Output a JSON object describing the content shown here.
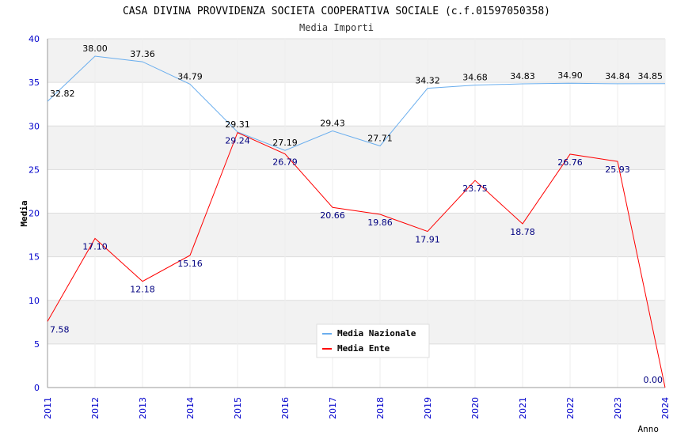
{
  "chart_data": {
    "type": "line",
    "title": "CASA DIVINA PROVVIDENZA SOCIETA COOPERATIVA SOCIALE (c.f.01597050358)",
    "subtitle": "Media Importi",
    "xlabel": "Anno",
    "ylabel": "Media",
    "ylim": [
      0,
      40
    ],
    "yticks": [
      "0",
      "5",
      "10",
      "15",
      "20",
      "25",
      "30",
      "35",
      "40"
    ],
    "x": [
      "2011",
      "2012",
      "2013",
      "2014",
      "2015",
      "2016",
      "2017",
      "2018",
      "2019",
      "2020",
      "2021",
      "2022",
      "2023",
      "2024"
    ],
    "series": [
      {
        "name": "Media Nazionale",
        "color": "#6aaeee",
        "label_color": "#000000",
        "values": [
          32.82,
          38.0,
          37.36,
          34.79,
          29.31,
          27.19,
          29.43,
          27.71,
          34.32,
          34.68,
          34.83,
          34.9,
          34.84,
          34.85
        ]
      },
      {
        "name": "Media Ente",
        "color": "#ff0000",
        "label_color": "#000080",
        "values": [
          7.58,
          17.1,
          12.18,
          15.16,
          29.24,
          26.79,
          20.66,
          19.86,
          17.91,
          23.75,
          18.78,
          26.76,
          25.93,
          0.0
        ]
      }
    ],
    "legend": "top-right",
    "grid": true
  }
}
